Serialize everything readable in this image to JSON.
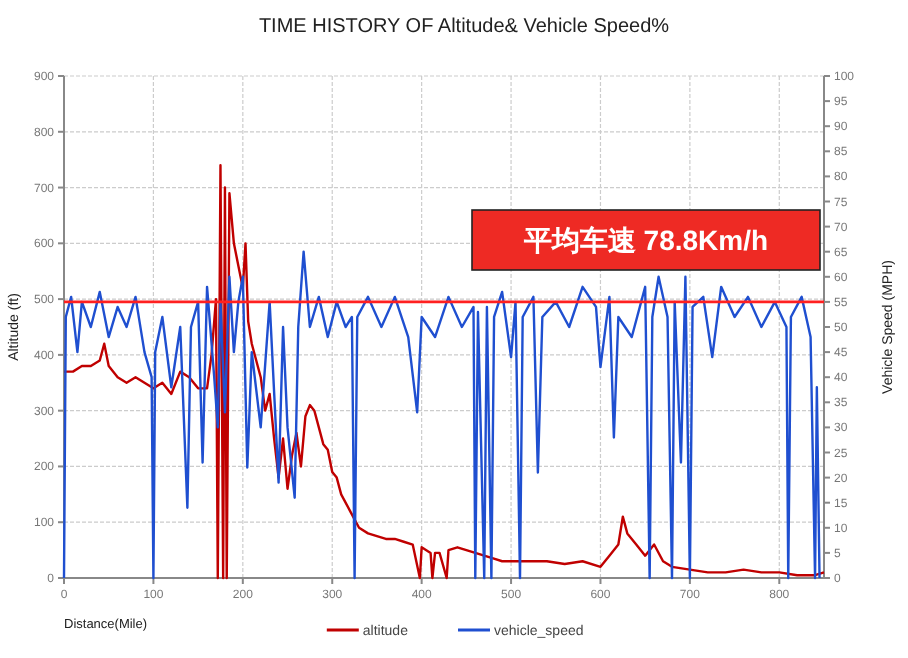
{
  "chart_data": {
    "type": "line",
    "title": "TIME HISTORY OF Altitude& Vehicle Speed%",
    "xlabel": "Distance(Mile)",
    "ylabel": "Altitude (ft)",
    "y2label": "Vehicle Speed (MPH)",
    "xlim": [
      0,
      850
    ],
    "xticks": [
      0,
      100,
      200,
      300,
      400,
      500,
      600,
      700,
      800
    ],
    "ylim": [
      0,
      900
    ],
    "yticks": [
      0,
      100,
      200,
      300,
      400,
      500,
      600,
      700,
      800,
      900
    ],
    "y2lim": [
      0,
      100
    ],
    "y2ticks": [
      0,
      5,
      10,
      15,
      20,
      25,
      30,
      35,
      40,
      45,
      50,
      55,
      60,
      65,
      70,
      75,
      80,
      85,
      90,
      95,
      100
    ],
    "grid": true,
    "legend": "bottom",
    "marker": "none",
    "line_style": "solid",
    "ref_lines": [
      {
        "axis": "y2",
        "value": 55,
        "color": "#ff2020"
      }
    ],
    "annotations": [
      "平均车速 78.8Km/h"
    ],
    "series": [
      {
        "name": "altitude",
        "color": "#c00000",
        "x": [
          0,
          10,
          20,
          30,
          40,
          45,
          50,
          60,
          70,
          80,
          90,
          100,
          110,
          120,
          130,
          140,
          150,
          160,
          165,
          170,
          172,
          175,
          178,
          180,
          182,
          185,
          190,
          195,
          200,
          203,
          206,
          210,
          220,
          225,
          230,
          235,
          240,
          245,
          250,
          255,
          260,
          265,
          270,
          275,
          280,
          285,
          290,
          295,
          300,
          305,
          310,
          320,
          330,
          340,
          350,
          360,
          370,
          380,
          390,
          398,
          400,
          410,
          412,
          415,
          420,
          428,
          430,
          440,
          450,
          470,
          480,
          490,
          500,
          520,
          540,
          560,
          580,
          600,
          610,
          620,
          625,
          630,
          640,
          650,
          660,
          670,
          680,
          700,
          720,
          740,
          760,
          780,
          800,
          820,
          840,
          850
        ],
        "values": [
          370,
          370,
          380,
          380,
          390,
          420,
          380,
          360,
          350,
          360,
          350,
          340,
          350,
          330,
          370,
          360,
          340,
          340,
          400,
          500,
          0,
          740,
          0,
          700,
          0,
          690,
          600,
          560,
          520,
          600,
          460,
          420,
          360,
          300,
          330,
          250,
          180,
          250,
          160,
          220,
          260,
          200,
          290,
          310,
          300,
          270,
          240,
          230,
          190,
          180,
          150,
          120,
          90,
          80,
          75,
          70,
          70,
          65,
          60,
          0,
          55,
          45,
          0,
          45,
          45,
          0,
          50,
          55,
          50,
          40,
          35,
          30,
          30,
          30,
          30,
          25,
          30,
          20,
          40,
          60,
          110,
          80,
          60,
          40,
          60,
          30,
          20,
          15,
          10,
          10,
          15,
          10,
          10,
          5,
          5,
          10
        ]
      },
      {
        "name": "vehicle_speed",
        "color": "#1f4fd0",
        "axis": "y2",
        "x": [
          0,
          2,
          8,
          15,
          20,
          30,
          40,
          50,
          60,
          70,
          80,
          90,
          98,
          100,
          102,
          110,
          120,
          130,
          138,
          142,
          150,
          155,
          160,
          168,
          172,
          175,
          180,
          185,
          190,
          195,
          200,
          205,
          210,
          220,
          230,
          240,
          245,
          250,
          258,
          262,
          268,
          275,
          285,
          295,
          305,
          315,
          322,
          325,
          328,
          340,
          355,
          370,
          385,
          395,
          400,
          415,
          430,
          445,
          458,
          460,
          463,
          470,
          473,
          478,
          481,
          490,
          500,
          505,
          510,
          513,
          525,
          530,
          535,
          550,
          565,
          580,
          595,
          600,
          610,
          615,
          620,
          635,
          650,
          655,
          658,
          665,
          675,
          680,
          683,
          690,
          695,
          700,
          703,
          715,
          725,
          735,
          750,
          765,
          780,
          795,
          808,
          810,
          813,
          825,
          835,
          840,
          842,
          845
        ],
        "values": [
          0,
          52,
          56,
          45,
          55,
          50,
          57,
          48,
          54,
          50,
          56,
          45,
          40,
          0,
          45,
          52,
          38,
          50,
          14,
          50,
          55,
          23,
          58,
          40,
          30,
          55,
          33,
          60,
          45,
          55,
          60,
          22,
          45,
          30,
          55,
          19,
          50,
          30,
          16,
          50,
          65,
          50,
          56,
          48,
          55,
          50,
          52,
          0,
          52,
          56,
          50,
          56,
          48,
          33,
          52,
          48,
          56,
          50,
          54,
          0,
          53,
          0,
          54,
          0,
          52,
          57,
          44,
          55,
          0,
          52,
          56,
          21,
          52,
          55,
          50,
          58,
          54,
          42,
          56,
          28,
          52,
          48,
          58,
          0,
          52,
          60,
          52,
          0,
          55,
          23,
          60,
          0,
          54,
          56,
          44,
          58,
          52,
          56,
          50,
          55,
          50,
          0,
          52,
          56,
          48,
          0,
          38,
          0
        ]
      }
    ]
  }
}
